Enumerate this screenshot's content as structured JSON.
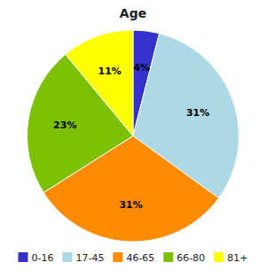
{
  "chart_data": {
    "type": "pie",
    "title": "Age",
    "categories": [
      "0-16",
      "17-45",
      "46-65",
      "66-80",
      "81+"
    ],
    "values": [
      4,
      31,
      31,
      23,
      11
    ],
    "value_labels": [
      "4%",
      "31%",
      "31%",
      "23%",
      "11%"
    ],
    "colors": [
      "#3333cc",
      "#add8e6",
      "#ff8c00",
      "#7dc000",
      "#ffff00"
    ],
    "data_labels": true,
    "legend": "bottom"
  }
}
